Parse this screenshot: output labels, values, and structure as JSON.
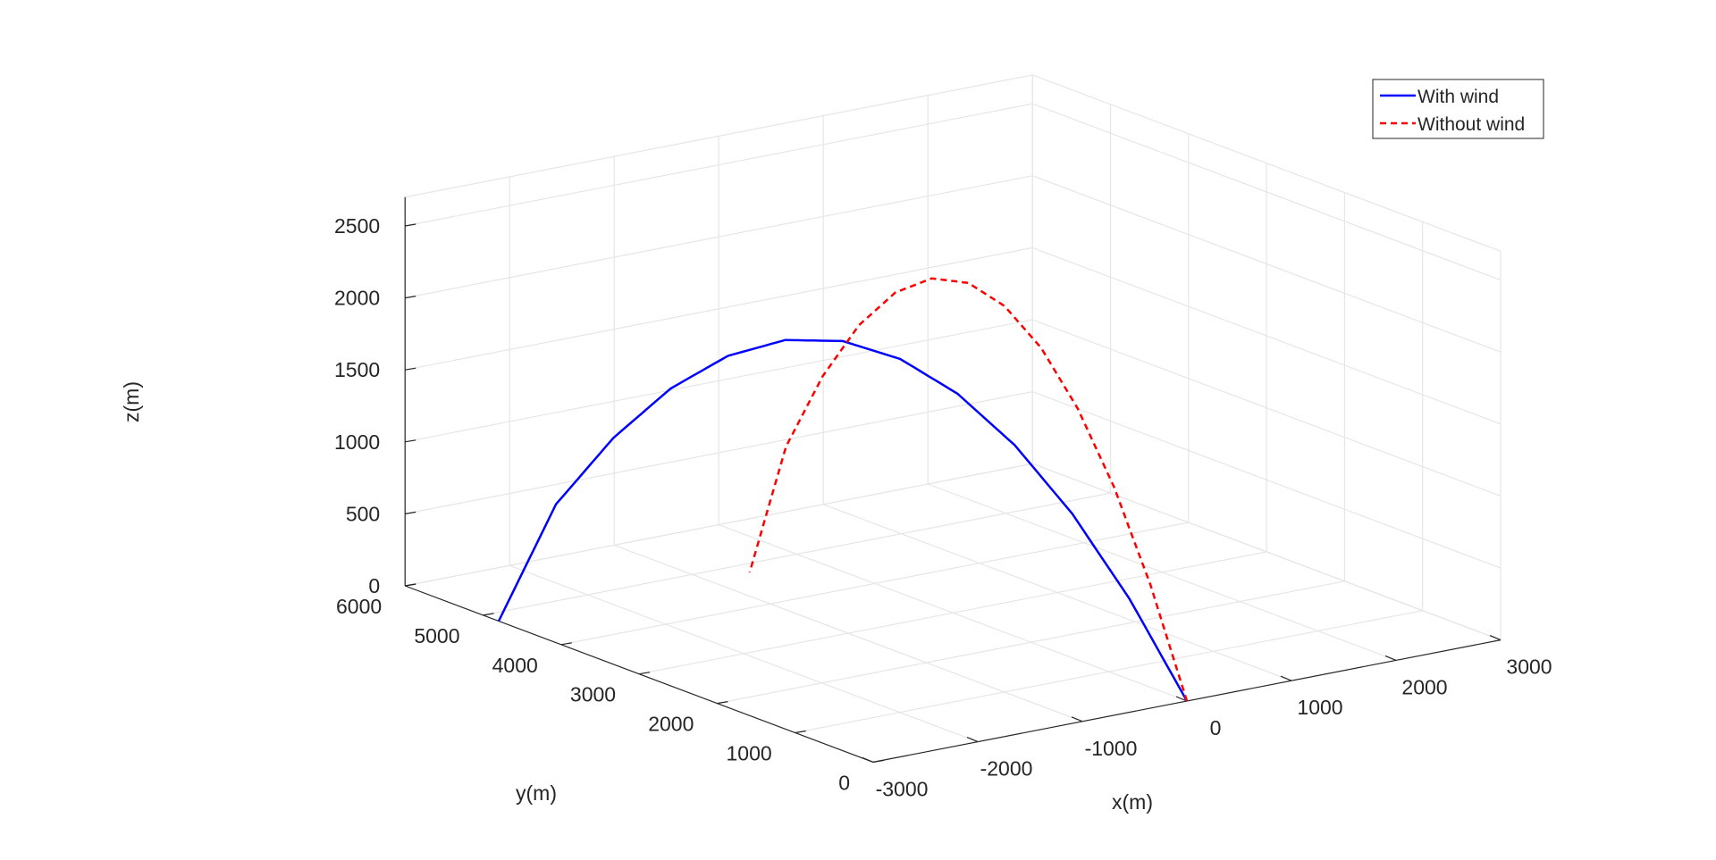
{
  "chart_data": {
    "type": "line3d",
    "title": "",
    "xlabel": "x(m)",
    "ylabel": "y(m)",
    "zlabel": "z(m)",
    "xlim": [
      -3000,
      3000
    ],
    "ylim": [
      0,
      6000
    ],
    "zlim": [
      0,
      2700
    ],
    "x_ticks": [
      -3000,
      -2000,
      -1000,
      0,
      1000,
      2000,
      3000
    ],
    "x_tick_labels": [
      "-3000",
      "-2000",
      "-1000",
      "0",
      "1000",
      "2000",
      "3000"
    ],
    "y_ticks": [
      0,
      1000,
      2000,
      3000,
      4000,
      5000,
      6000
    ],
    "y_tick_labels": [
      "0",
      "1000",
      "2000",
      "3000",
      "4000",
      "5000",
      "6000"
    ],
    "z_ticks": [
      0,
      500,
      1000,
      1500,
      2000,
      2500
    ],
    "z_tick_labels": [
      "0",
      "500",
      "1000",
      "1500",
      "2000",
      "2500"
    ],
    "grid": true,
    "legend_position": "top-right",
    "series": [
      {
        "name": "With wind",
        "color": "#0000ff",
        "style": "solid",
        "x": [
          0,
          -250,
          -500,
          -750,
          -1000,
          -1250,
          -1500,
          -1750,
          -2000,
          -2250,
          -2500,
          -2750,
          -3000
        ],
        "y": [
          0,
          400,
          800,
          1200,
          1600,
          2000,
          2400,
          2800,
          3200,
          3600,
          4000,
          4400,
          4800
        ],
        "z": [
          0,
          663,
          1209,
          1638,
          1950,
          2145,
          2223,
          2184,
          2028,
          1755,
          1365,
          858,
          0
        ]
      },
      {
        "name": "Without wind",
        "color": "#ff0000",
        "style": "dashed",
        "x": [
          0,
          -50,
          -100,
          -150,
          -200,
          -250,
          -300,
          -350,
          -400,
          -450,
          -500,
          -550,
          -600
        ],
        "y": [
          0,
          400,
          800,
          1200,
          1600,
          2000,
          2400,
          2800,
          3200,
          3600,
          4000,
          4400,
          4800
        ],
        "z": [
          0,
          733,
          1337,
          1810,
          2155,
          2370,
          2457,
          2414,
          2241,
          1940,
          1509,
          948,
          0
        ]
      }
    ]
  }
}
